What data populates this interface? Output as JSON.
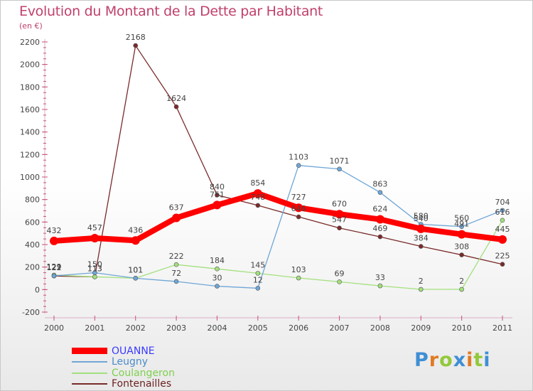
{
  "header": {
    "title": "Evolution du Montant de la Dette par Habitant",
    "subtitle": "(en €)"
  },
  "chart_data": {
    "type": "line",
    "title": "Evolution du Montant de la Dette par Habitant",
    "subtitle": "(en €)",
    "xlabel": "",
    "ylabel": "",
    "categories": [
      "2000",
      "2001",
      "2002",
      "2003",
      "2004",
      "2005",
      "2006",
      "2007",
      "2008",
      "2009",
      "2010",
      "2011"
    ],
    "y_ticks": [
      "-200",
      "0",
      "200",
      "400",
      "600",
      "800",
      "1000",
      "1200",
      "1400",
      "1600",
      "1800",
      "2000",
      "2200"
    ],
    "ylim": [
      -200,
      2200
    ],
    "grid": false,
    "legend_position": "bottom-left",
    "series": [
      {
        "name": "OUANNE",
        "color": "#ff0000",
        "values": [
          432,
          457,
          436,
          637,
          751,
          854,
          727,
          670,
          624,
          540,
          491,
          445
        ]
      },
      {
        "name": "Leugny",
        "color": "#6fa6d6",
        "values": [
          122,
          150,
          101,
          72,
          30,
          12,
          1103,
          1071,
          863,
          580,
          560,
          704
        ]
      },
      {
        "name": "Coulangeron",
        "color": "#a3e07d",
        "values": [
          129,
          113,
          101,
          222,
          184,
          145,
          103,
          69,
          33,
          2,
          2,
          616
        ]
      },
      {
        "name": "Fontenailles",
        "color": "#7a2a2a",
        "values": [
          121,
          113,
          2168,
          1624,
          840,
          748,
          646,
          547,
          469,
          384,
          308,
          225
        ]
      }
    ]
  },
  "logo": {
    "letters": [
      "P",
      "r",
      "o",
      "x",
      "i",
      "t",
      "i"
    ],
    "colors": [
      "#3f8fd4",
      "#e07b22",
      "#93c93a",
      "#3f8fd4",
      "#e07b22",
      "#93c93a",
      "#3f8fd4"
    ]
  }
}
